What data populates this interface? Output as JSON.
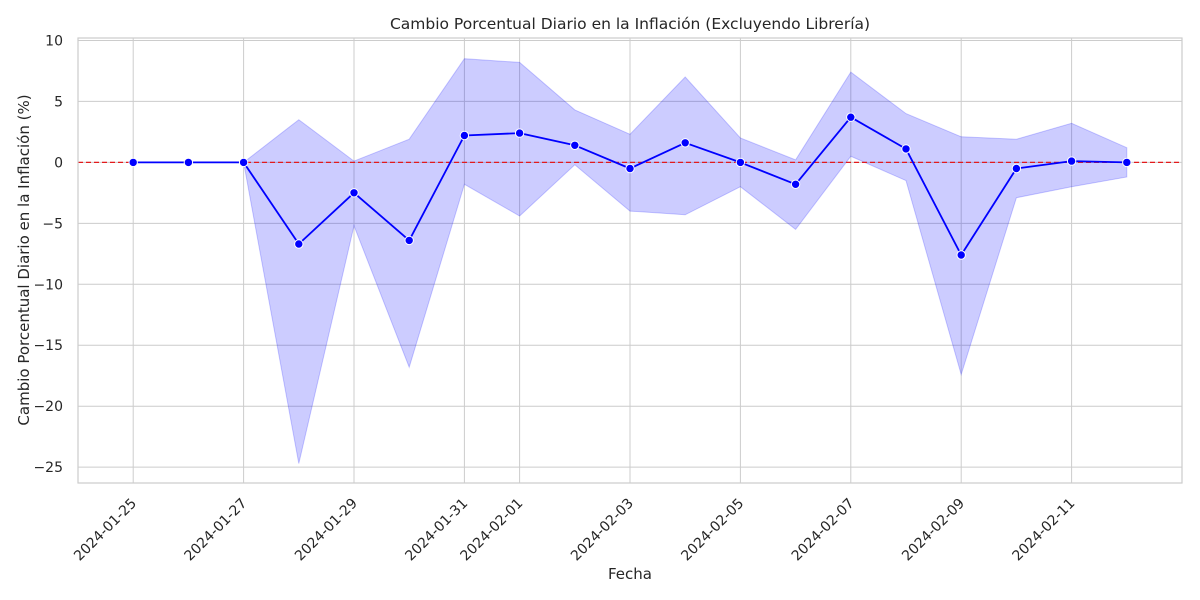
{
  "chart_data": {
    "type": "line",
    "title": "Cambio Porcentual Diario en la Inflación (Excluyendo Librería)",
    "xlabel": "Fecha",
    "ylabel": "Cambio Porcentual Diario en la Inflación (%)",
    "ylim": [
      -26.3,
      10.2
    ],
    "xlim": [
      "2024-01-24",
      "2024-02-13"
    ],
    "y_ticks": [
      10,
      5,
      0,
      -5,
      -10,
      -15,
      -20,
      -25
    ],
    "x_ticks": [
      "2024-01-25",
      "2024-01-27",
      "2024-01-29",
      "2024-01-31",
      "2024-02-01",
      "2024-02-03",
      "2024-02-05",
      "2024-02-07",
      "2024-02-09",
      "2024-02-11"
    ],
    "grid": true,
    "reference_line": {
      "y": 0,
      "style": "dashed",
      "color": "#e31a1c"
    },
    "series": [
      {
        "color": "#0000ff",
        "band_color": "#0000ff",
        "points": [
          {
            "x": "2024-01-25",
            "y": 0.0,
            "lo": 0.0,
            "hi": 0.0
          },
          {
            "x": "2024-01-26",
            "y": 0.0,
            "lo": 0.0,
            "hi": 0.0
          },
          {
            "x": "2024-01-27",
            "y": 0.0,
            "lo": 0.0,
            "hi": 0.0
          },
          {
            "x": "2024-01-28",
            "y": -6.7,
            "lo": -24.7,
            "hi": 3.5
          },
          {
            "x": "2024-01-29",
            "y": -2.5,
            "lo": -5.2,
            "hi": 0.1
          },
          {
            "x": "2024-01-30",
            "y": -6.4,
            "lo": -16.8,
            "hi": 1.9
          },
          {
            "x": "2024-01-31",
            "y": 2.2,
            "lo": -1.8,
            "hi": 8.5
          },
          {
            "x": "2024-02-01",
            "y": 2.4,
            "lo": -4.4,
            "hi": 8.2
          },
          {
            "x": "2024-02-02",
            "y": 1.4,
            "lo": -0.2,
            "hi": 4.3
          },
          {
            "x": "2024-02-03",
            "y": -0.5,
            "lo": -4.0,
            "hi": 2.3
          },
          {
            "x": "2024-02-04",
            "y": 1.6,
            "lo": -4.3,
            "hi": 7.0
          },
          {
            "x": "2024-02-05",
            "y": 0.0,
            "lo": -2.0,
            "hi": 2.0
          },
          {
            "x": "2024-02-06",
            "y": -1.8,
            "lo": -5.5,
            "hi": 0.2
          },
          {
            "x": "2024-02-07",
            "y": 3.7,
            "lo": 0.5,
            "hi": 7.4
          },
          {
            "x": "2024-02-08",
            "y": 1.1,
            "lo": -1.5,
            "hi": 4.0
          },
          {
            "x": "2024-02-09",
            "y": -7.6,
            "lo": -17.4,
            "hi": 2.1
          },
          {
            "x": "2024-02-10",
            "y": -0.5,
            "lo": -2.9,
            "hi": 1.9
          },
          {
            "x": "2024-02-11",
            "y": 0.1,
            "lo": -2.0,
            "hi": 3.2
          },
          {
            "x": "2024-02-12",
            "y": 0.0,
            "lo": -1.2,
            "hi": 1.2
          }
        ]
      }
    ]
  }
}
